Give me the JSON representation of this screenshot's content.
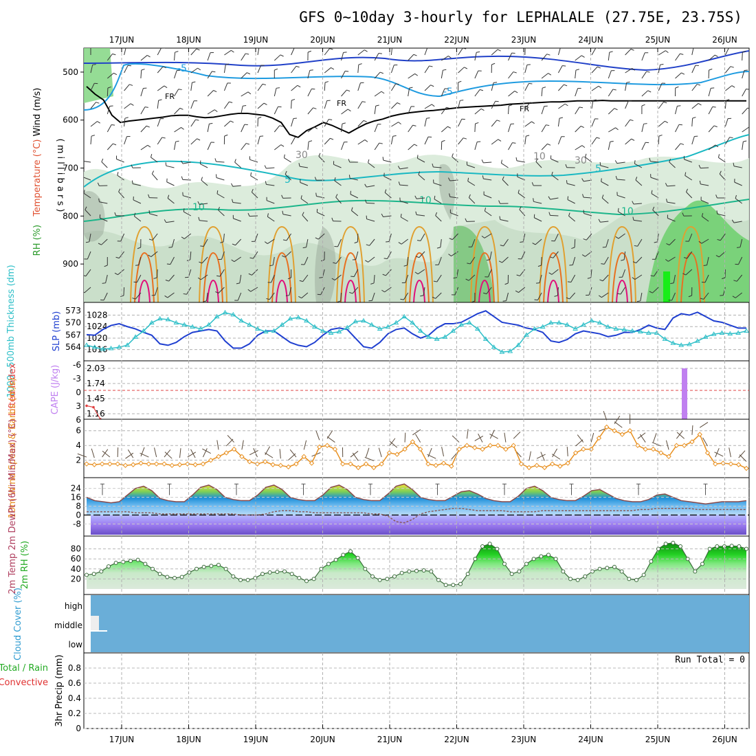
{
  "title": "GFS 0~10day 3-hourly for LEPHALALE (27.75E, 23.75S)",
  "dates": [
    "17JUN",
    "18JUN",
    "19JUN",
    "20JUN",
    "21JUN",
    "22JUN",
    "23JUN",
    "24JUN",
    "25JUN",
    "26JUN"
  ],
  "colors": {
    "wind_barb": "#333333",
    "freezing": "#000000",
    "isotherm_minus5": "#1e9be0",
    "isotherm_5": "#19b8c2",
    "isotherm_10": "#1bb58a",
    "isotherm_warm": "#e0a030",
    "isotherm_hot": "#e87020",
    "isotherm_hottest": "#e0107a",
    "rh_shade": "#d8ead8",
    "rh_shade_dark": "#9aaa9a",
    "rh_green": "#3ccf3c",
    "slp": "#1f3fd0",
    "thickness": "#2ebfc8",
    "cape": "#c080f0",
    "lifted_index": "#e04040",
    "wind10": "#e89020",
    "cloud": "#6aaed8",
    "grid": "#b0b0b0"
  },
  "chart_data": [
    {
      "type": "contour",
      "panel": "upper-air",
      "ylabel_parts": [
        {
          "text": "Wind (m/s)",
          "color": "#000000"
        },
        {
          "text": "Temperature (°C)",
          "color": "#e05030"
        },
        {
          "text": "RH (%)",
          "color": "#2a9a2a"
        }
      ],
      "ylabel_right": "( m i l l i b a r s )",
      "yticks": [
        500,
        600,
        700,
        800,
        900
      ],
      "ylim": [
        980,
        450
      ],
      "contour_labels": [
        "-5",
        "-5",
        "FR",
        "FR",
        "FR",
        "5",
        "5",
        "10",
        "10",
        "10",
        "30",
        "10",
        "30"
      ],
      "freezing_level": [
        530,
        546,
        558,
        590,
        605,
        602,
        600,
        598,
        596,
        594,
        591,
        590,
        590,
        593,
        595,
        594,
        591,
        588,
        586,
        586,
        588,
        590,
        596,
        605,
        630,
        636,
        622,
        614,
        605,
        611,
        619,
        627,
        617,
        608,
        602,
        598,
        592,
        588,
        585,
        583,
        581,
        580,
        578,
        576,
        574,
        573,
        572,
        571,
        570,
        569,
        567,
        566,
        565,
        564,
        563,
        562,
        562,
        561,
        560,
        560,
        560,
        559,
        560,
        560,
        560,
        560,
        560,
        560,
        560,
        560,
        560,
        560,
        560,
        560,
        560,
        560,
        560,
        560,
        560
      ]
    },
    {
      "type": "line",
      "panel": "slp-thickness",
      "ylabel_left": "1000~500mb Thickness (dm)",
      "ylabel_right": "SLP (mb)",
      "yticks_left": [
        564,
        567,
        570,
        573
      ],
      "yticks_right": [
        1016,
        1020,
        1024,
        1028
      ],
      "series": [
        {
          "name": "SLP (mb)",
          "values": [
            1021.2,
            1021.0,
            1023.0,
            1024.4,
            1025.0,
            1024.0,
            1023.2,
            1022.0,
            1021.0,
            1018.0,
            1017.5,
            1018.5,
            1020.5,
            1022.0,
            1022.5,
            1023.0,
            1022.5,
            1019.0,
            1016.5,
            1016.5,
            1018.0,
            1021.0,
            1022.5,
            1022.5,
            1020.5,
            1018.5,
            1017.5,
            1017.0,
            1018.5,
            1021.0,
            1023.0,
            1023.5,
            1023.0,
            1020.0,
            1017.0,
            1016.5,
            1018.5,
            1021.5,
            1023.0,
            1023.5,
            1021.5,
            1020.0,
            1021.0,
            1023.5,
            1025.0,
            1025.0,
            1025.5,
            1027.0,
            1028.5,
            1029.5,
            1027.5,
            1025.5,
            1025.0,
            1024.5,
            1023.5,
            1023.0,
            1022.0,
            1019.0,
            1018.5,
            1019.5,
            1021.5,
            1022.5,
            1022.0,
            1021.5,
            1020.5,
            1021.0,
            1022.0,
            1022.0,
            1023.0,
            1024.5,
            1023.5,
            1023.0,
            1027.0,
            1028.5,
            1028.0,
            1029.0,
            1027.5,
            1026.0,
            1025.5,
            1024.5,
            1023.5,
            1023.5
          ]
        },
        {
          "name": "1000~500mb Thickness (dm)",
          "values": [
            564.5,
            564.0,
            563.5,
            563.7,
            564.0,
            564.5,
            566.5,
            568.0,
            570.0,
            571.0,
            570.8,
            570.0,
            569.5,
            569.0,
            568.5,
            569.5,
            571.5,
            572.5,
            572.0,
            570.5,
            569.5,
            568.5,
            567.8,
            568.0,
            569.5,
            571.0,
            571.3,
            570.5,
            569.0,
            568.0,
            567.5,
            567.8,
            568.8,
            570.3,
            570.5,
            569.5,
            568.5,
            569.0,
            570.0,
            571.5,
            570.0,
            568.0,
            566.5,
            566.0,
            566.5,
            568.0,
            569.5,
            570.0,
            568.5,
            566.0,
            564.0,
            562.8,
            563.0,
            564.5,
            567.0,
            568.5,
            569.0,
            570.0,
            570.0,
            569.5,
            568.5,
            569.5,
            570.5,
            570.0,
            569.0,
            568.5,
            568.3,
            568.0,
            567.8,
            567.5,
            567.5,
            566.0,
            565.0,
            564.5,
            564.7,
            565.5,
            566.5,
            567.2,
            567.5,
            567.3,
            567.5,
            568.0
          ]
        }
      ]
    },
    {
      "type": "bar",
      "panel": "cape-lifted-index",
      "ylabel_left": "Lifted Index",
      "ylabel_right": "CAPE (J/kg)",
      "yticks_left": [
        "-6",
        "-3",
        "0",
        "3",
        "6"
      ],
      "yticks_right": [
        "1.16",
        "1.45",
        "1.74",
        "2.03"
      ],
      "series": [
        {
          "name": "CAPE (J/kg)",
          "x_date": "25JUN",
          "x_hour": 9,
          "value": 2.0
        },
        {
          "name": "Lifted Index",
          "values": [
            3.2,
            3.5,
            6.0
          ]
        }
      ]
    },
    {
      "type": "line",
      "panel": "wind10m",
      "ylabel": "10m Wind Speed & Barbs (m/s)",
      "yticks": [
        2,
        4,
        6
      ],
      "series": [
        {
          "name": "10m Wind Speed",
          "values": [
            1.5,
            1.4,
            1.5,
            1.5,
            1.5,
            1.3,
            1.4,
            1.6,
            1.5,
            1.5,
            1.5,
            1.3,
            1.4,
            1.5,
            1.4,
            1.5,
            2.0,
            2.5,
            3.0,
            3.5,
            2.5,
            1.8,
            1.5,
            1.8,
            1.4,
            1.3,
            1.1,
            1.5,
            2.5,
            1.6,
            3.8,
            4.0,
            3.5,
            1.5,
            1.5,
            1.0,
            1.5,
            1.0,
            1.5,
            3.0,
            2.8,
            3.5,
            4.5,
            3.5,
            1.5,
            1.3,
            1.6,
            1.2,
            3.5,
            4.0,
            3.7,
            3.5,
            4.0,
            4.0,
            3.5,
            4.0,
            1.5,
            1.0,
            1.3,
            1.0,
            1.5,
            1.2,
            1.6,
            3.0,
            3.5,
            3.5,
            5.0,
            6.5,
            6.0,
            5.5,
            6.0,
            4.0,
            3.5,
            3.5,
            3.0,
            2.5,
            4.0,
            4.0,
            4.5,
            5.5,
            3.0,
            1.5,
            1.6,
            1.5,
            1.4,
            0.9
          ]
        }
      ]
    },
    {
      "type": "area",
      "panel": "temperature",
      "ylabel": "2m Temp 2m DewPt (6hr Min/Max) (°C)",
      "yticks": [
        -8,
        0,
        8,
        16,
        24
      ],
      "series": [
        {
          "name": "2m Temp",
          "values": [
            16,
            13,
            12,
            11,
            12,
            18,
            24,
            26,
            22,
            15,
            13,
            12,
            12,
            18,
            25,
            27,
            23,
            16,
            14,
            13,
            13,
            18,
            25,
            27,
            23,
            16,
            14,
            13,
            13,
            18,
            25,
            27,
            23,
            16,
            14,
            13,
            13,
            19,
            26,
            28,
            23,
            16,
            14,
            13,
            13,
            17,
            21,
            22,
            19,
            15,
            13,
            12,
            12,
            17,
            24,
            26,
            22,
            16,
            14,
            13,
            13,
            17,
            22,
            23,
            19,
            15,
            13,
            12,
            12,
            14,
            18,
            19,
            16,
            13,
            12,
            11,
            10,
            11,
            12,
            12,
            12,
            13
          ]
        },
        {
          "name": "2m DewPt",
          "values": [
            3,
            3,
            3,
            3,
            3,
            3,
            2,
            2,
            2,
            1,
            1,
            1,
            1,
            1,
            1,
            1,
            1,
            1,
            1,
            0,
            0,
            0,
            1,
            3,
            4,
            4,
            3,
            3,
            2,
            2,
            2,
            2,
            2,
            2,
            2,
            1,
            1,
            -1,
            -6,
            -7,
            -4,
            1,
            3,
            4,
            5,
            6,
            6,
            5,
            4,
            4,
            4,
            4,
            3,
            3,
            3,
            3,
            4,
            4,
            4,
            4,
            4,
            4,
            4,
            4,
            4,
            4,
            4,
            4,
            5,
            5,
            6,
            6,
            6,
            6,
            6,
            5,
            5,
            5,
            5,
            5,
            5,
            5
          ]
        }
      ]
    },
    {
      "type": "area",
      "panel": "rh2m",
      "ylabel": "2m RH (%)",
      "yticks": [
        20,
        40,
        60,
        80
      ],
      "series": [
        {
          "name": "2m RH",
          "values": [
            28,
            30,
            35,
            45,
            52,
            54,
            56,
            58,
            50,
            40,
            30,
            24,
            22,
            24,
            33,
            40,
            44,
            46,
            48,
            40,
            25,
            18,
            18,
            22,
            30,
            33,
            34,
            35,
            30,
            22,
            16,
            20,
            40,
            50,
            58,
            68,
            75,
            62,
            40,
            25,
            18,
            20,
            25,
            32,
            35,
            36,
            37,
            35,
            18,
            8,
            8,
            10,
            30,
            60,
            85,
            90,
            80,
            50,
            30,
            35,
            50,
            60,
            65,
            68,
            60,
            35,
            20,
            18,
            25,
            35,
            40,
            42,
            44,
            35,
            20,
            18,
            28,
            55,
            80,
            90,
            92,
            85,
            60,
            35,
            50,
            80,
            85,
            85,
            86,
            85,
            80
          ]
        }
      ]
    },
    {
      "type": "bar",
      "panel": "cloud-cover",
      "ylabel": "Cloud Cover (%)",
      "categories": [
        "high",
        "middle",
        "low"
      ]
    },
    {
      "type": "bar",
      "panel": "precip",
      "ylabel": "3hr Precip (mm)",
      "legend_parts": [
        {
          "text": "Total / Rain",
          "color": "#22aa22"
        },
        {
          "text": "Convective",
          "color": "#e03030"
        }
      ],
      "yticks": [
        "0",
        "0.2",
        "0.4",
        "0.6",
        "0.8"
      ],
      "ylim": [
        0,
        1
      ],
      "run_total": "Run Total = 0",
      "values": []
    }
  ]
}
